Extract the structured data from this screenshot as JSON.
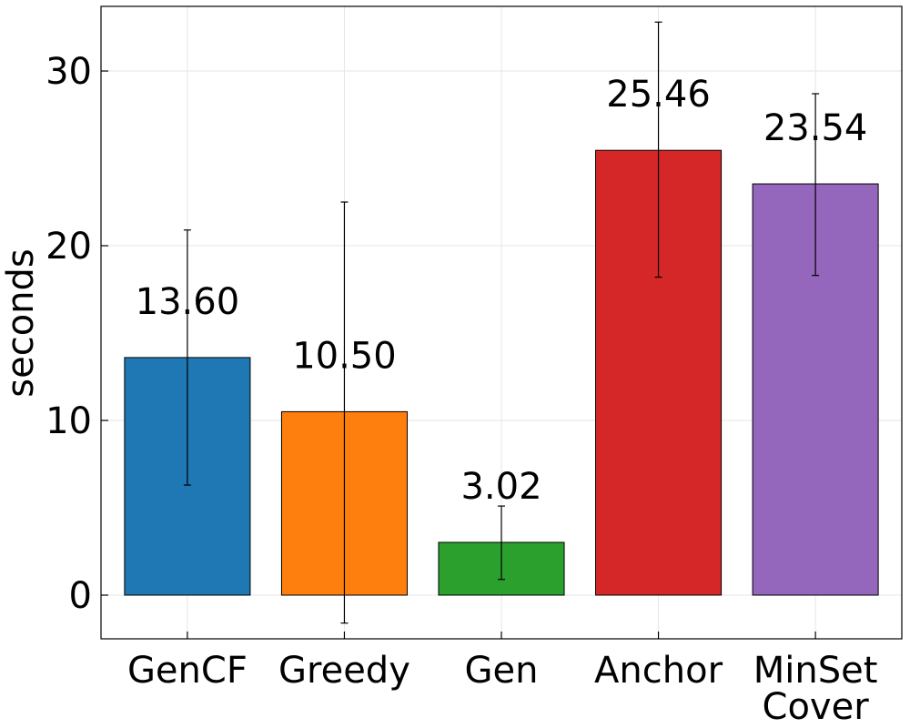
{
  "chart_data": {
    "type": "bar",
    "title": "",
    "xlabel": "",
    "ylabel": "seconds",
    "ylim": [
      -2.5,
      33.7
    ],
    "yticks": [
      0,
      10,
      20,
      30
    ],
    "grid": true,
    "categories": [
      [
        "GenCF"
      ],
      [
        "Greedy"
      ],
      [
        "Gen"
      ],
      [
        "Anchor"
      ],
      [
        "MinSet",
        "Cover"
      ]
    ],
    "values": [
      13.6,
      10.5,
      3.02,
      25.46,
      23.54
    ],
    "value_labels": [
      "13.60",
      "10.50",
      "3.02",
      "25.46",
      "23.54"
    ],
    "error_low": [
      6.3,
      -1.6,
      0.9,
      18.2,
      18.3
    ],
    "error_high": [
      20.9,
      22.5,
      5.1,
      32.8,
      28.7
    ],
    "colors": [
      "#1f77b4",
      "#ff7f0e",
      "#2ca02c",
      "#d62728",
      "#9467bd"
    ]
  }
}
